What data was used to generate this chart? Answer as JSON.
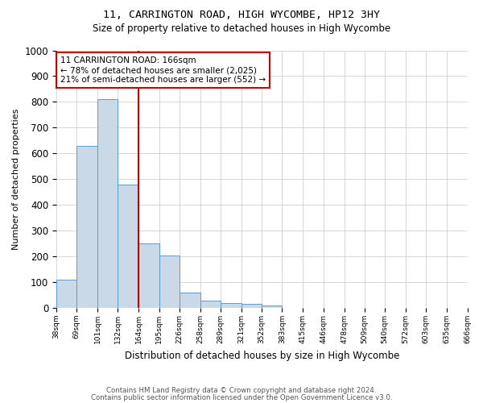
{
  "title": "11, CARRINGTON ROAD, HIGH WYCOMBE, HP12 3HY",
  "subtitle": "Size of property relative to detached houses in High Wycombe",
  "xlabel": "Distribution of detached houses by size in High Wycombe",
  "ylabel": "Number of detached properties",
  "footnote1": "Contains HM Land Registry data © Crown copyright and database right 2024.",
  "footnote2": "Contains public sector information licensed under the Open Government Licence v3.0.",
  "bin_edges": [
    38,
    69,
    101,
    132,
    164,
    195,
    226,
    258,
    289,
    321,
    352,
    383,
    415,
    446,
    478,
    509,
    540,
    572,
    603,
    635,
    666
  ],
  "bar_heights": [
    110,
    630,
    810,
    480,
    250,
    205,
    60,
    30,
    20,
    15,
    10,
    0,
    0,
    0,
    0,
    0,
    0,
    0,
    0,
    0
  ],
  "bar_color": "#c9d9e8",
  "bar_edge_color": "#5b9bd5",
  "red_line_x": 164,
  "ylim": [
    0,
    1000
  ],
  "yticks": [
    0,
    100,
    200,
    300,
    400,
    500,
    600,
    700,
    800,
    900,
    1000
  ],
  "annotation_text": "11 CARRINGTON ROAD: 166sqm\n← 78% of detached houses are smaller (2,025)\n21% of semi-detached houses are larger (552) →",
  "annotation_box_color": "#ffffff",
  "annotation_box_edge_color": "#cc0000",
  "background_color": "#ffffff",
  "grid_color": "#d0d0d0"
}
